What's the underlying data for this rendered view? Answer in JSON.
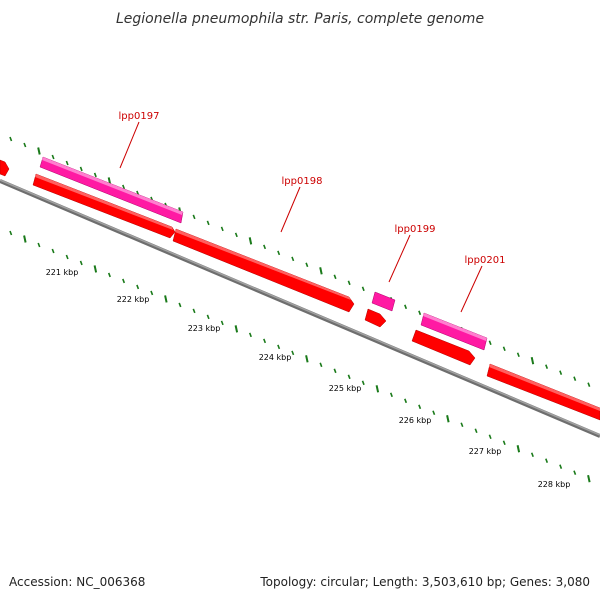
{
  "title": "Legionella pneumophila str. Paris, complete genome",
  "footer": {
    "accession": "Accession: NC_006368",
    "summary": "Topology: circular; Length: 3,503,610 bp; Genes: 3,080"
  },
  "colors": {
    "backbone": "#808080",
    "gene_fill": "#ff0000",
    "gene_highlight": "#ff1aa3",
    "tick": "#1a7a1a",
    "label": "#cc0000"
  },
  "genes": [
    {
      "name": "lpp0197"
    },
    {
      "name": "lpp0198"
    },
    {
      "name": "lpp0199"
    },
    {
      "name": "lpp0201"
    }
  ],
  "kbp_labels": [
    "221 kbp",
    "222 kbp",
    "223 kbp",
    "224 kbp",
    "225 kbp",
    "226 kbp",
    "227 kbp",
    "228 kbp"
  ]
}
